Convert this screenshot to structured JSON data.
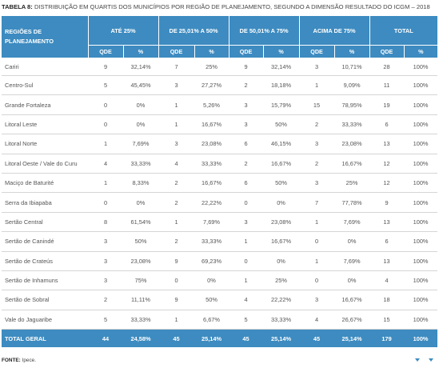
{
  "caption": {
    "label": "TABELA 8:",
    "text": "DISTRIBUIÇÃO EM QUARTIS DOS MUNICÍPIOS POR REGIÃO DE PLANEJAMENTO, SEGUNDO A DIMENSÃO RESULTADO DO ICGM – 2018"
  },
  "header": {
    "regions": "REGIÕES DE PLANEJAMENTO",
    "groups": [
      "ATÉ 25%",
      "DE 25,01% A 50%",
      "DE 50,01% A 75%",
      "ACIMA DE 75%",
      "TOTAL"
    ],
    "qde": "QDE",
    "pct": "%"
  },
  "rows": [
    {
      "region": "Cariri",
      "v": [
        "9",
        "32,14%",
        "7",
        "25%",
        "9",
        "32,14%",
        "3",
        "10,71%",
        "28",
        "100%"
      ]
    },
    {
      "region": "Centro-Sul",
      "v": [
        "5",
        "45,45%",
        "3",
        "27,27%",
        "2",
        "18,18%",
        "1",
        "9,09%",
        "11",
        "100%"
      ]
    },
    {
      "region": "Grande Fortaleza",
      "v": [
        "0",
        "0%",
        "1",
        "5,26%",
        "3",
        "15,79%",
        "15",
        "78,95%",
        "19",
        "100%"
      ]
    },
    {
      "region": "Litoral Leste",
      "v": [
        "0",
        "0%",
        "1",
        "16,67%",
        "3",
        "50%",
        "2",
        "33,33%",
        "6",
        "100%"
      ]
    },
    {
      "region": "Litoral Norte",
      "v": [
        "1",
        "7,69%",
        "3",
        "23,08%",
        "6",
        "46,15%",
        "3",
        "23,08%",
        "13",
        "100%"
      ]
    },
    {
      "region": "Litoral Oeste / Vale do Curu",
      "v": [
        "4",
        "33,33%",
        "4",
        "33,33%",
        "2",
        "16,67%",
        "2",
        "16,67%",
        "12",
        "100%"
      ]
    },
    {
      "region": "Maciço de Baturité",
      "v": [
        "1",
        "8,33%",
        "2",
        "16,67%",
        "6",
        "50%",
        "3",
        "25%",
        "12",
        "100%"
      ]
    },
    {
      "region": "Serra da Ibiapaba",
      "v": [
        "0",
        "0%",
        "2",
        "22,22%",
        "0",
        "0%",
        "7",
        "77,78%",
        "9",
        "100%"
      ]
    },
    {
      "region": "Sertão Central",
      "v": [
        "8",
        "61,54%",
        "1",
        "7,69%",
        "3",
        "23,08%",
        "1",
        "7,69%",
        "13",
        "100%"
      ]
    },
    {
      "region": "Sertão de Canindé",
      "v": [
        "3",
        "50%",
        "2",
        "33,33%",
        "1",
        "16,67%",
        "0",
        "0%",
        "6",
        "100%"
      ]
    },
    {
      "region": "Sertão de Crateús",
      "v": [
        "3",
        "23,08%",
        "9",
        "69,23%",
        "0",
        "0%",
        "1",
        "7,69%",
        "13",
        "100%"
      ]
    },
    {
      "region": "Sertão de Inhamuns",
      "v": [
        "3",
        "75%",
        "0",
        "0%",
        "1",
        "25%",
        "0",
        "0%",
        "4",
        "100%"
      ]
    },
    {
      "region": "Sertão de Sobral",
      "v": [
        "2",
        "11,11%",
        "9",
        "50%",
        "4",
        "22,22%",
        "3",
        "16,67%",
        "18",
        "100%"
      ]
    },
    {
      "region": "Vale do Jaguaribe",
      "v": [
        "5",
        "33,33%",
        "1",
        "6,67%",
        "5",
        "33,33%",
        "4",
        "26,67%",
        "15",
        "100%"
      ]
    }
  ],
  "total": {
    "region": "TOTAL GERAL",
    "v": [
      "44",
      "24,58%",
      "45",
      "25,14%",
      "45",
      "25,14%",
      "45",
      "25,14%",
      "179",
      "100%"
    ]
  },
  "source": {
    "label": "FONTE:",
    "text": " Ipece."
  },
  "colors": {
    "header_bg": "#3d8bc0",
    "row_border": "#d5d5d5"
  }
}
